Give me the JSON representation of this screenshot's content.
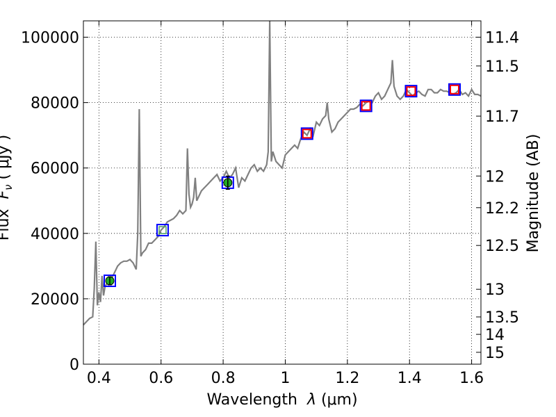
{
  "chart_data": {
    "type": "line",
    "xlabel_text": "Wavelength  ",
    "xlabel_symbol": "λ",
    "xlabel_unit": "(μm)",
    "ylabel_text": "Flux  ",
    "ylabel_symbol": "F",
    "ylabel_subscript": "ν",
    "ylabel_unit": "( μJy )",
    "y2label": "Magnitude (AB)",
    "xlim": [
      0.35,
      1.63
    ],
    "ylim": [
      0,
      105000
    ],
    "grid": true,
    "colors": {
      "spectrum": "#808080",
      "model_box": "#0000ff",
      "model_box_alt": "#ff0000",
      "photometry": "#22aa22",
      "model_dot": "#4aa060"
    },
    "x_ticks": [
      {
        "value": 0.4,
        "label": "0.4"
      },
      {
        "value": 0.6,
        "label": "0.6"
      },
      {
        "value": 0.8,
        "label": "0.8"
      },
      {
        "value": 1.0,
        "label": "1"
      },
      {
        "value": 1.2,
        "label": "1.2"
      },
      {
        "value": 1.4,
        "label": "1.4"
      },
      {
        "value": 1.6,
        "label": "1.6"
      }
    ],
    "y_ticks": [
      {
        "value": 0,
        "label": "0"
      },
      {
        "value": 20000,
        "label": "20000"
      },
      {
        "value": 40000,
        "label": "40000"
      },
      {
        "value": 60000,
        "label": "60000"
      },
      {
        "value": 80000,
        "label": "80000"
      },
      {
        "value": 100000,
        "label": "100000"
      }
    ],
    "y2_ticks": [
      {
        "mag": 11.4,
        "label": "11.4"
      },
      {
        "mag": 11.5,
        "label": "11.5"
      },
      {
        "mag": 11.7,
        "label": "11.7"
      },
      {
        "mag": 12,
        "label": "12"
      },
      {
        "mag": 12.2,
        "label": "12.2"
      },
      {
        "mag": 12.5,
        "label": "12.5"
      },
      {
        "mag": 13,
        "label": "13"
      },
      {
        "mag": 13.5,
        "label": "13.5"
      },
      {
        "mag": 14,
        "label": "14"
      },
      {
        "mag": 15,
        "label": "15"
      }
    ],
    "spectrum": {
      "name": "spectrum",
      "x": [
        0.35,
        0.36,
        0.37,
        0.38,
        0.385,
        0.39,
        0.395,
        0.4,
        0.405,
        0.41,
        0.415,
        0.42,
        0.43,
        0.44,
        0.45,
        0.46,
        0.47,
        0.48,
        0.49,
        0.5,
        0.51,
        0.52,
        0.525,
        0.53,
        0.535,
        0.54,
        0.55,
        0.56,
        0.57,
        0.58,
        0.59,
        0.6,
        0.61,
        0.62,
        0.63,
        0.64,
        0.65,
        0.66,
        0.67,
        0.68,
        0.685,
        0.69,
        0.695,
        0.7,
        0.705,
        0.71,
        0.715,
        0.72,
        0.73,
        0.74,
        0.75,
        0.76,
        0.77,
        0.78,
        0.79,
        0.8,
        0.81,
        0.82,
        0.83,
        0.84,
        0.85,
        0.86,
        0.87,
        0.88,
        0.89,
        0.9,
        0.91,
        0.92,
        0.93,
        0.94,
        0.945,
        0.95,
        0.955,
        0.96,
        0.97,
        0.98,
        0.99,
        1.0,
        1.01,
        1.02,
        1.03,
        1.04,
        1.05,
        1.06,
        1.07,
        1.08,
        1.09,
        1.1,
        1.11,
        1.12,
        1.13,
        1.135,
        1.14,
        1.15,
        1.16,
        1.17,
        1.18,
        1.19,
        1.2,
        1.21,
        1.22,
        1.23,
        1.24,
        1.25,
        1.26,
        1.27,
        1.28,
        1.29,
        1.3,
        1.31,
        1.32,
        1.33,
        1.34,
        1.345,
        1.35,
        1.36,
        1.37,
        1.38,
        1.39,
        1.4,
        1.41,
        1.42,
        1.43,
        1.44,
        1.45,
        1.46,
        1.47,
        1.48,
        1.49,
        1.5,
        1.51,
        1.52,
        1.53,
        1.54,
        1.55,
        1.56,
        1.57,
        1.58,
        1.59,
        1.6,
        1.61,
        1.62,
        1.63
      ],
      "y": [
        12000,
        13000,
        14000,
        14500,
        23000,
        37500,
        18000,
        22000,
        19000,
        27000,
        21000,
        24000,
        25000,
        26000,
        28000,
        30000,
        31000,
        31500,
        31500,
        32000,
        31000,
        29000,
        40000,
        78000,
        33000,
        34000,
        35000,
        37000,
        37000,
        38000,
        39000,
        41000,
        42000,
        43500,
        44000,
        44500,
        45500,
        47000,
        46000,
        47000,
        66000,
        52000,
        48000,
        49000,
        51000,
        57000,
        50000,
        51000,
        53000,
        54000,
        55000,
        56000,
        57000,
        58000,
        56000,
        57000,
        59000,
        57000,
        58000,
        60000,
        54000,
        57000,
        56000,
        58000,
        60000,
        61000,
        59000,
        60000,
        59000,
        61000,
        65000,
        105000,
        62000,
        65000,
        62000,
        61000,
        60000,
        64000,
        65000,
        66000,
        67000,
        66000,
        69000,
        71000,
        70000,
        72000,
        70000,
        74000,
        73000,
        75000,
        76000,
        80000,
        75000,
        71000,
        72000,
        74000,
        75000,
        76000,
        77000,
        78000,
        78000,
        78500,
        79500,
        79000,
        80000,
        80500,
        80000,
        82000,
        83000,
        81000,
        82000,
        84000,
        86000,
        93000,
        85000,
        82000,
        81000,
        82000,
        84000,
        83000,
        82000,
        83000,
        83500,
        82500,
        82000,
        84000,
        84000,
        83000,
        83000,
        84000,
        83500,
        83500,
        83000,
        82500,
        83000,
        84000,
        82500,
        83000,
        82000,
        84000,
        82500,
        82500,
        82000
      ]
    },
    "model_boxes": [
      {
        "x": 0.435,
        "y": 25500,
        "edge": "#0000ff"
      },
      {
        "x": 0.605,
        "y": 41000,
        "edge": "#0000ff"
      },
      {
        "x": 0.815,
        "y": 55500,
        "edge": "#0000ff"
      },
      {
        "x": 1.07,
        "y": 70500,
        "edge": "#0000ff"
      },
      {
        "x": 1.07,
        "y": 70500,
        "edge": "#ff0000"
      },
      {
        "x": 1.26,
        "y": 79000,
        "edge": "#0000ff"
      },
      {
        "x": 1.26,
        "y": 79000,
        "edge": "#ff0000"
      },
      {
        "x": 1.405,
        "y": 83500,
        "edge": "#0000ff"
      },
      {
        "x": 1.405,
        "y": 83500,
        "edge": "#ff0000"
      },
      {
        "x": 1.545,
        "y": 84000,
        "edge": "#0000ff"
      },
      {
        "x": 1.545,
        "y": 84000,
        "edge": "#ff0000"
      }
    ],
    "photometry": [
      {
        "x": 0.435,
        "y": 25500,
        "yerr": 1200
      },
      {
        "x": 0.815,
        "y": 55500,
        "yerr": 2000
      }
    ],
    "model_dots": [
      {
        "x": 0.605,
        "y": 41000
      }
    ]
  }
}
